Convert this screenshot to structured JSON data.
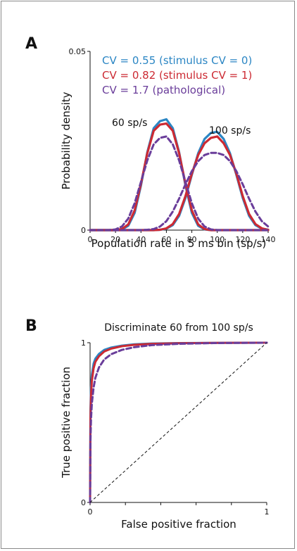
{
  "panels": {
    "a_letter": "A",
    "b_letter": "B"
  },
  "colors": {
    "cv055": "#2b86c4",
    "cv082": "#cc2a33",
    "cv17": "#6a3d9a"
  },
  "chart_data": [
    {
      "type": "line",
      "title": "",
      "xlabel": "Population rate in 5 ms bin (sp/s)",
      "ylabel": "Probability density",
      "xlim": [
        0,
        140
      ],
      "ylim": [
        0,
        0.05
      ],
      "xticks": [
        "0",
        "20",
        "40",
        "60",
        "80",
        "100",
        "120",
        "140"
      ],
      "yticks": [
        "0",
        "0.05"
      ],
      "legend": [
        "CV = 0.55 (stimulus CV = 0)",
        "CV = 0.82 (stimulus CV = 1)",
        "CV = 1.7 (pathological)"
      ],
      "annotations": [
        "60 sp/s",
        "100 sp/s"
      ],
      "x": [
        0,
        5,
        10,
        15,
        20,
        25,
        30,
        35,
        40,
        45,
        50,
        55,
        60,
        65,
        70,
        75,
        80,
        85,
        90,
        95,
        100,
        105,
        110,
        115,
        120,
        125,
        130,
        135,
        140
      ],
      "series": [
        {
          "name": "CV = 0.55 (stimulus CV = 0)",
          "group": "60 sp/s",
          "style": "solid",
          "values": [
            0,
            0,
            0,
            0,
            0,
            0.0002,
            0.0012,
            0.0048,
            0.0125,
            0.0218,
            0.0285,
            0.0305,
            0.031,
            0.0285,
            0.0218,
            0.0125,
            0.0048,
            0.0012,
            0.0002,
            0,
            0,
            0,
            0,
            0,
            0,
            0,
            0,
            0,
            0
          ]
        },
        {
          "name": "CV = 0.55 (stimulus CV = 0)",
          "group": "100 sp/s",
          "style": "solid",
          "values": [
            0,
            0,
            0,
            0,
            0,
            0,
            0,
            0,
            0,
            0,
            0,
            0.0001,
            0.0004,
            0.0014,
            0.004,
            0.009,
            0.0155,
            0.0215,
            0.0255,
            0.0272,
            0.0275,
            0.0255,
            0.0215,
            0.0155,
            0.009,
            0.004,
            0.0014,
            0.0004,
            0.0001
          ]
        },
        {
          "name": "CV = 0.82 (stimulus CV = 1)",
          "group": "60 sp/s",
          "style": "solid",
          "values": [
            0,
            0,
            0,
            0,
            0,
            0.0003,
            0.0016,
            0.0055,
            0.013,
            0.0215,
            0.0278,
            0.0295,
            0.0298,
            0.0278,
            0.0215,
            0.013,
            0.0055,
            0.0016,
            0.0003,
            0,
            0,
            0,
            0,
            0,
            0,
            0,
            0,
            0,
            0
          ]
        },
        {
          "name": "CV = 0.82 (stimulus CV = 1)",
          "group": "100 sp/s",
          "style": "solid",
          "values": [
            0,
            0,
            0,
            0,
            0,
            0,
            0,
            0,
            0,
            0,
            0,
            0.0001,
            0.0005,
            0.0017,
            0.0045,
            0.0095,
            0.0158,
            0.021,
            0.0243,
            0.0258,
            0.0262,
            0.0243,
            0.021,
            0.0158,
            0.0095,
            0.0045,
            0.0017,
            0.0005,
            0.0001
          ]
        },
        {
          "name": "CV = 1.7 (pathological)",
          "group": "60 sp/s",
          "style": "dashed",
          "values": [
            0,
            0,
            0,
            0,
            0.0002,
            0.001,
            0.0032,
            0.0075,
            0.0135,
            0.0195,
            0.024,
            0.0258,
            0.0262,
            0.024,
            0.0195,
            0.0135,
            0.0075,
            0.0032,
            0.001,
            0.0002,
            0,
            0,
            0,
            0,
            0,
            0,
            0,
            0,
            0
          ]
        },
        {
          "name": "CV = 1.7 (pathological)",
          "group": "100 sp/s",
          "style": "dashed",
          "values": [
            0,
            0,
            0,
            0,
            0,
            0,
            0,
            0,
            0,
            0.0001,
            0.0003,
            0.001,
            0.0025,
            0.0052,
            0.0088,
            0.0128,
            0.0165,
            0.0193,
            0.021,
            0.0216,
            0.0216,
            0.021,
            0.0193,
            0.0165,
            0.0128,
            0.0088,
            0.0052,
            0.0025,
            0.001
          ]
        }
      ]
    },
    {
      "type": "line",
      "title": "Discriminate 60 from 100 sp/s",
      "xlabel": "False positive fraction",
      "ylabel": "True positive fraction",
      "xlim": [
        0,
        1
      ],
      "ylim": [
        0,
        1
      ],
      "xticks": [
        "0",
        "1"
      ],
      "yticks": [
        "0",
        "1"
      ],
      "series": [
        {
          "name": "CV = 0.55 (stimulus CV = 0)",
          "style": "solid",
          "x": [
            0,
            0.002,
            0.005,
            0.01,
            0.02,
            0.03,
            0.05,
            0.08,
            0.12,
            0.18,
            0.25,
            0.35,
            0.5,
            0.7,
            1.0
          ],
          "y": [
            0,
            0.58,
            0.72,
            0.8,
            0.87,
            0.9,
            0.93,
            0.955,
            0.97,
            0.982,
            0.99,
            0.995,
            0.998,
            0.999,
            1.0
          ]
        },
        {
          "name": "CV = 0.82 (stimulus CV = 1)",
          "style": "solid",
          "x": [
            0,
            0.002,
            0.005,
            0.01,
            0.02,
            0.03,
            0.05,
            0.08,
            0.12,
            0.18,
            0.25,
            0.35,
            0.5,
            0.7,
            1.0
          ],
          "y": [
            0,
            0.52,
            0.67,
            0.76,
            0.84,
            0.88,
            0.915,
            0.945,
            0.963,
            0.978,
            0.987,
            0.993,
            0.997,
            0.999,
            1.0
          ]
        },
        {
          "name": "CV = 1.7 (pathological)",
          "style": "dashed",
          "x": [
            0,
            0.002,
            0.005,
            0.01,
            0.02,
            0.03,
            0.05,
            0.08,
            0.12,
            0.18,
            0.25,
            0.35,
            0.5,
            0.7,
            1.0
          ],
          "y": [
            0,
            0.38,
            0.52,
            0.62,
            0.72,
            0.78,
            0.845,
            0.895,
            0.928,
            0.955,
            0.972,
            0.985,
            0.993,
            0.998,
            1.0
          ]
        },
        {
          "name": "",
          "style": "dashed-diagonal",
          "x": [
            0,
            1
          ],
          "y": [
            0,
            1
          ]
        }
      ]
    }
  ]
}
